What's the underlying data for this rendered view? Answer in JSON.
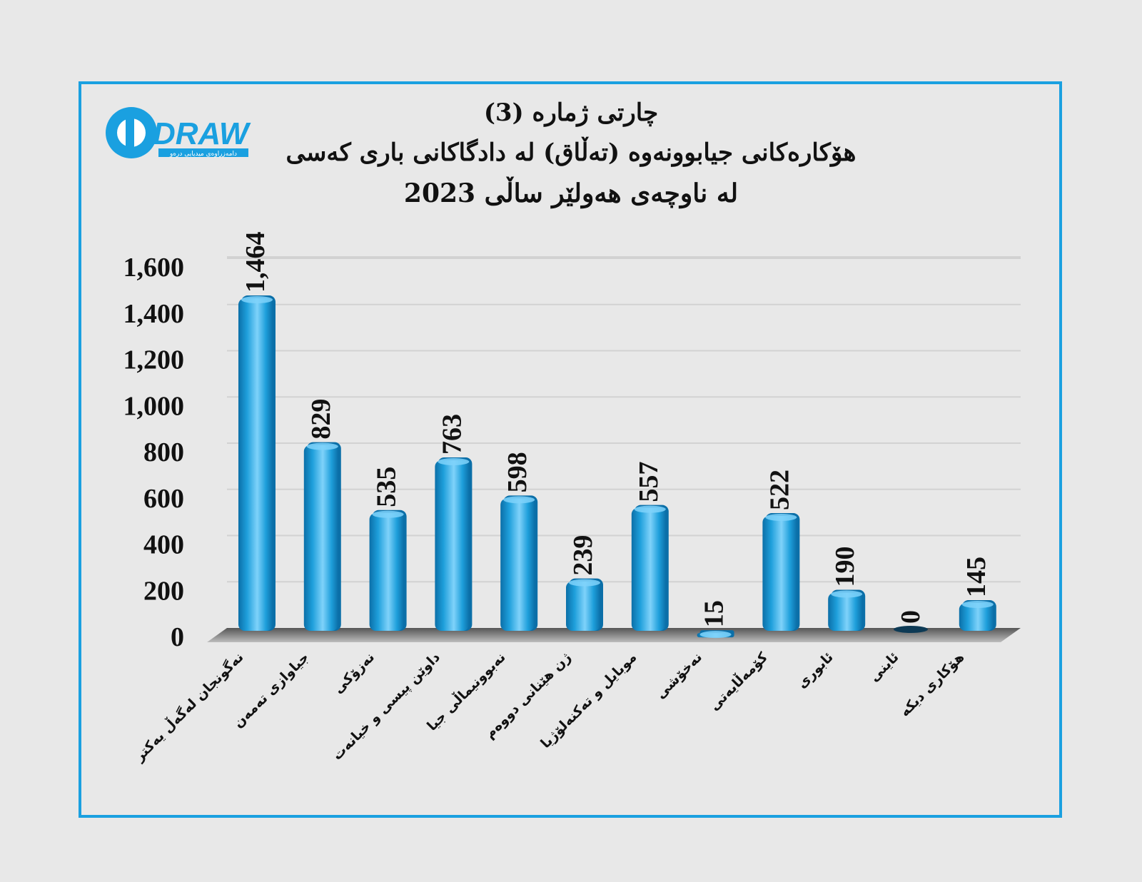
{
  "logo": {
    "wordmark": "DRAW",
    "tagline": "دامەزراوەی میدیایی درەو"
  },
  "title": {
    "line1": "چارتی ژمارە (3)",
    "line2": "هۆکارەکانی جیابوونەوە (تەڵاق) لە دادگاکانی باری کەسی",
    "line3": "لە ناوچەی هەولێر ساڵی 2023"
  },
  "colors": {
    "bar": "#1e9fdb",
    "bar_dark": "#0b6fa8",
    "bar_light": "#7fd2fa",
    "frame": "#1aa0e0",
    "zero_bar": "#0d3a55"
  },
  "chart_data": {
    "type": "bar",
    "title": "هۆکارەکانی جیابوونەوە (تەڵاق) لە دادگاکانی باری کەسی لە ناوچەی هەولێر ساڵی 2023",
    "categories": [
      "نەگونجان لەگەڵ یەکتر",
      "جیاوازی تەمەن",
      "نەزۆکی",
      "داوێن پیسی و خیانەت",
      "نەبوونیماڵی جیا",
      "ژن هێنانی دووەم",
      "موبایل و تەکنەلۆژیا",
      "نەخۆشی",
      "کۆمەڵایەتی",
      "ئابوری",
      "ئاینی",
      "هۆکاری دیکە"
    ],
    "values": [
      1464,
      829,
      535,
      763,
      598,
      239,
      557,
      15,
      522,
      190,
      0,
      145
    ],
    "value_labels": [
      "1,464",
      "829",
      "535",
      "763",
      "598",
      "239",
      "557",
      "15",
      "522",
      "190",
      "0",
      "145"
    ],
    "ylim": [
      0,
      1600
    ],
    "yticks": [
      0,
      200,
      400,
      600,
      800,
      1000,
      1200,
      1400,
      1600
    ],
    "ytick_labels": [
      "0",
      "200",
      "400",
      "600",
      "800",
      "1,000",
      "1,200",
      "1,400",
      "1,600"
    ],
    "grid": true,
    "legend": "none"
  }
}
